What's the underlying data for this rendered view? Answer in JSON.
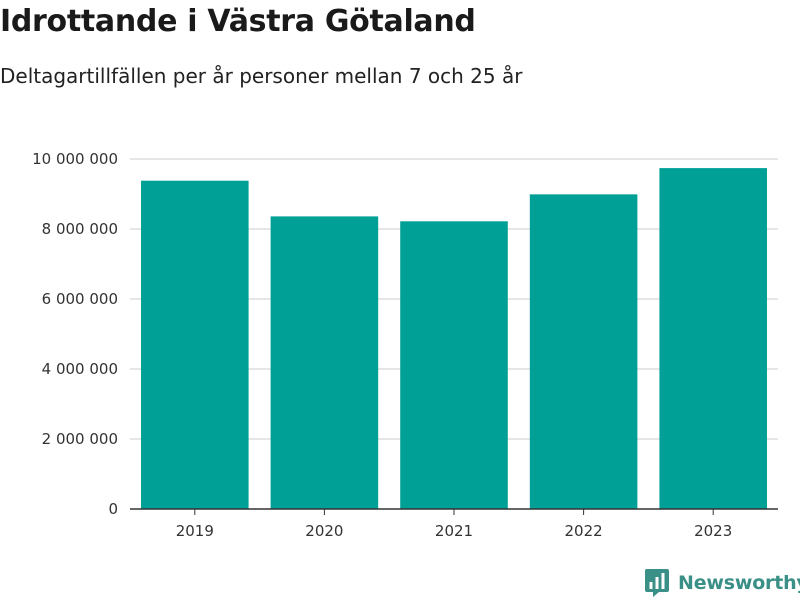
{
  "header": {
    "title": "Idrottande i Västra Götaland",
    "subtitle": "Deltagartillfällen per år personer mellan 7 och 25 år"
  },
  "brand": {
    "name": "Newsworthy",
    "icon": "newsworthy-logo-icon",
    "color": "#3a8f86"
  },
  "colors": {
    "bar": "#00a096",
    "grid": "#dddddd",
    "axis": "#333333"
  },
  "chart_data": {
    "type": "bar",
    "title": "Idrottande i Västra Götaland",
    "subtitle": "Deltagartillfällen per år personer mellan 7 och 25 år",
    "xlabel": "",
    "ylabel": "",
    "categories": [
      "2019",
      "2020",
      "2021",
      "2022",
      "2023"
    ],
    "values": [
      9380000,
      8360000,
      8220000,
      8990000,
      9740000
    ],
    "ylim": [
      0,
      10000000
    ],
    "yticks": [
      0,
      2000000,
      4000000,
      6000000,
      8000000,
      10000000
    ],
    "ytick_labels": [
      "0",
      "2 000 000",
      "4 000 000",
      "6 000 000",
      "8 000 000",
      "10 000 000"
    ],
    "grid": true,
    "legend": "none"
  }
}
